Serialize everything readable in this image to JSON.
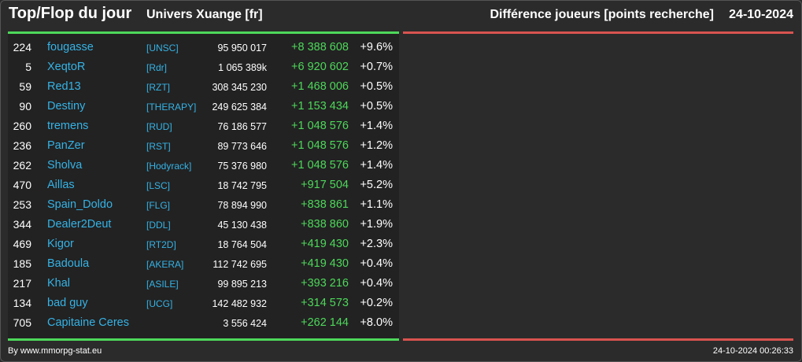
{
  "header": {
    "title": "Top/Flop du jour",
    "universe": "Univers Xuange [fr]",
    "metric": "Différence joueurs [points recherche]",
    "date": "24-10-2024"
  },
  "colors": {
    "accent_green": "#4dd85a",
    "accent_red": "#d9534f",
    "link_blue": "#35b3e6"
  },
  "top_rows": [
    {
      "rank": "224",
      "name": "fougasse",
      "ally": "[UNSC]",
      "points": "95 950 017",
      "diff": "+8 388 608",
      "pct": "+9.6%"
    },
    {
      "rank": "5",
      "name": "XeqtoR",
      "ally": "[Rdr]",
      "points": "1 065 389k",
      "diff": "+6 920 602",
      "pct": "+0.7%"
    },
    {
      "rank": "59",
      "name": "Red13",
      "ally": "[RZT]",
      "points": "308 345 230",
      "diff": "+1 468 006",
      "pct": "+0.5%"
    },
    {
      "rank": "90",
      "name": "Destiny",
      "ally": "[THERAPY]",
      "points": "249 625 384",
      "diff": "+1 153 434",
      "pct": "+0.5%"
    },
    {
      "rank": "260",
      "name": "tremens",
      "ally": "[RUD]",
      "points": "76 186 577",
      "diff": "+1 048 576",
      "pct": "+1.4%"
    },
    {
      "rank": "236",
      "name": "PanZer",
      "ally": "[RST]",
      "points": "89 773 646",
      "diff": "+1 048 576",
      "pct": "+1.2%"
    },
    {
      "rank": "262",
      "name": "Sholva",
      "ally": "[Hodyrack]",
      "points": "75 376 980",
      "diff": "+1 048 576",
      "pct": "+1.4%"
    },
    {
      "rank": "470",
      "name": "Aillas",
      "ally": "[LSC]",
      "points": "18 742 795",
      "diff": "+917 504",
      "pct": "+5.2%"
    },
    {
      "rank": "253",
      "name": "Spain_Doldo",
      "ally": "[FLG]",
      "points": "78 894 990",
      "diff": "+838 861",
      "pct": "+1.1%"
    },
    {
      "rank": "344",
      "name": "Dealer2Deut",
      "ally": "[DDL]",
      "points": "45 130 438",
      "diff": "+838 860",
      "pct": "+1.9%"
    },
    {
      "rank": "469",
      "name": "Kigor",
      "ally": "[RT2D]",
      "points": "18 764 504",
      "diff": "+419 430",
      "pct": "+2.3%"
    },
    {
      "rank": "185",
      "name": "Badoula",
      "ally": "[AKERA]",
      "points": "112 742 695",
      "diff": "+419 430",
      "pct": "+0.4%"
    },
    {
      "rank": "217",
      "name": "Khal",
      "ally": "[ASILE]",
      "points": "99 895 213",
      "diff": "+393 216",
      "pct": "+0.4%"
    },
    {
      "rank": "134",
      "name": "bad guy",
      "ally": "[UCG]",
      "points": "142 482 932",
      "diff": "+314 573",
      "pct": "+0.2%"
    },
    {
      "rank": "705",
      "name": "Capitaine Ceres",
      "ally": "",
      "points": "3 556 424",
      "diff": "+262 144",
      "pct": "+8.0%"
    }
  ],
  "footer": {
    "credit": "By www.mmorpg-stat.eu",
    "timestamp": "24-10-2024 00:26:33"
  }
}
